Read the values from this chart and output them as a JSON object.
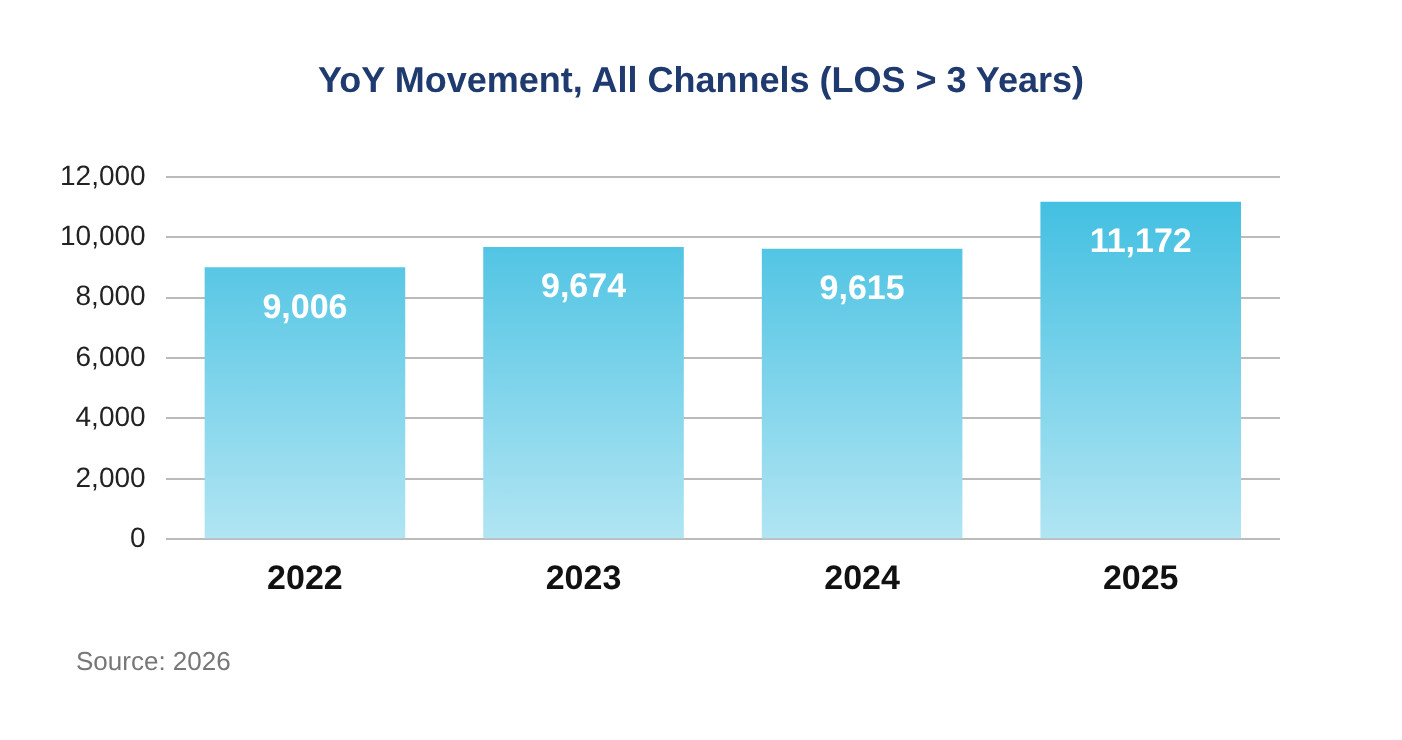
{
  "chart_data": {
    "type": "bar",
    "title": "YoY Movement, All Channels (LOS > 3 Years)",
    "categories": [
      "2022",
      "2023",
      "2024",
      "2025"
    ],
    "values": [
      9006,
      9674,
      9615,
      11172
    ],
    "color": "#3bbde0",
    "ylim": [
      0,
      12000
    ],
    "yticks": [
      {
        "value": 0,
        "label": "0"
      },
      {
        "value": 2000,
        "label": "2,000"
      },
      {
        "value": 4000,
        "label": "4,000"
      },
      {
        "value": 6000,
        "label": "6,000"
      },
      {
        "value": 8000,
        "label": "8,000"
      },
      {
        "value": 10000,
        "label": "10,000"
      },
      {
        "value": 12000,
        "label": "12,000"
      }
    ],
    "grid": "y",
    "legend": false,
    "value_labels": [
      "9,006",
      "9,674",
      "9,615",
      "11,172"
    ],
    "annotations": [
      "Source: 2026"
    ]
  }
}
